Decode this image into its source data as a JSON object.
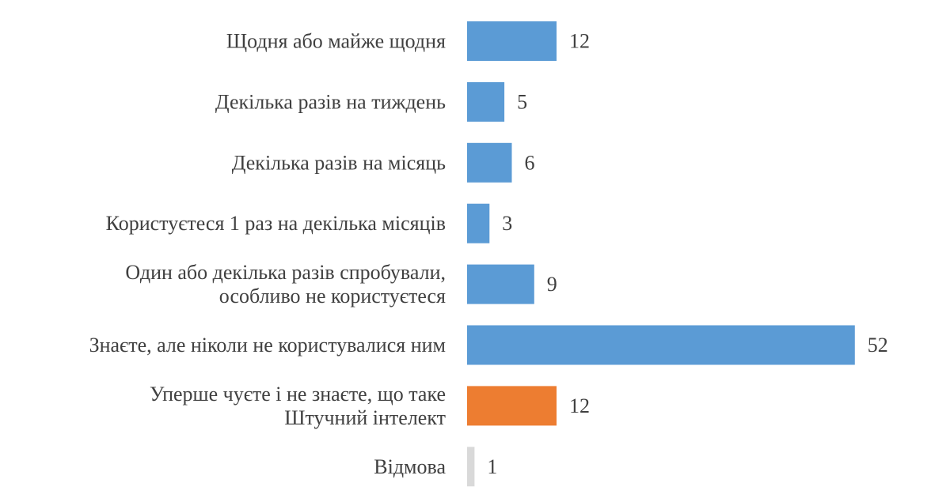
{
  "chart_data": {
    "type": "bar",
    "orientation": "horizontal",
    "title": "",
    "xlabel": "",
    "ylabel": "",
    "categories": [
      [
        "Щодня або майже щодня"
      ],
      [
        "Декілька разів на тиждень"
      ],
      [
        "Декілька разів на місяць"
      ],
      [
        "Користуєтеся 1 раз на декілька місяців"
      ],
      [
        "Один або декілька разів спробували,",
        "особливо не користуєтеся"
      ],
      [
        "Знаєте, але ніколи не користувалися ним"
      ],
      [
        "Уперше чуєте і не знаєте, що таке",
        "Штучний інтелект"
      ],
      [
        "Відмова"
      ]
    ],
    "values": [
      12,
      5,
      6,
      3,
      9,
      52,
      12,
      1
    ],
    "bar_colors": [
      "#5b9bd5",
      "#5b9bd5",
      "#5b9bd5",
      "#5b9bd5",
      "#5b9bd5",
      "#5b9bd5",
      "#ed7d31",
      "#d9d9d9"
    ],
    "value_label_colors": [
      "#404040",
      "#404040",
      "#404040",
      "#404040",
      "#404040",
      "#404040",
      "#404040",
      "#8c8c8c"
    ],
    "xlim": [
      0,
      52
    ],
    "grid": false,
    "legend": "none",
    "data_labels": true
  }
}
